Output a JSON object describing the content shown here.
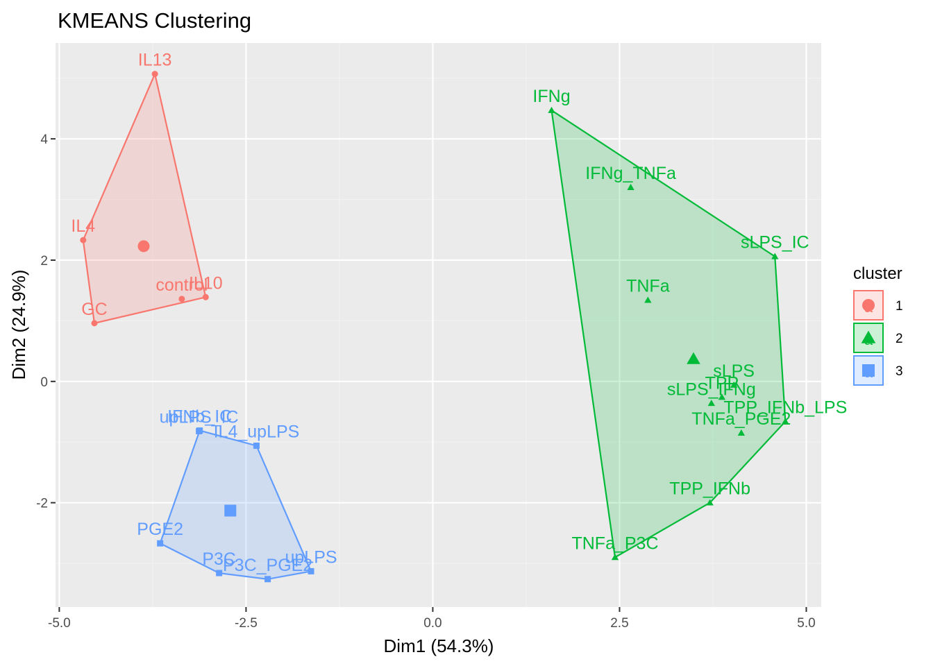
{
  "chart_data": {
    "type": "scatter",
    "title": "KMEANS Clustering",
    "xlabel": "Dim1 (54.3%)",
    "ylabel": "Dim2 (24.9%)",
    "xlim": [
      -5.05,
      5.2
    ],
    "ylim": [
      -3.72,
      5.58
    ],
    "x_ticks": [
      -5.0,
      -2.5,
      0.0,
      2.5,
      5.0
    ],
    "x_tick_labels": [
      "-5.0",
      "-2.5",
      "0.0",
      "2.5",
      "5.0"
    ],
    "y_ticks": [
      -2,
      0,
      2,
      4
    ],
    "y_tick_labels": [
      "-2",
      "0",
      "2",
      "4"
    ],
    "grid": true,
    "legend": {
      "title": "cluster",
      "position": "right",
      "entries": [
        {
          "label": "1",
          "glyph": "a"
        },
        {
          "label": "2",
          "glyph": "a"
        },
        {
          "label": "3",
          "glyph": "a"
        }
      ]
    },
    "series": [
      {
        "name": "1",
        "shape": "circle",
        "color": "#F8766D",
        "hull": [
          "IL13",
          "IL4",
          "GC",
          "IL10"
        ],
        "center": {
          "x": -3.87,
          "y": 2.23
        },
        "points": [
          {
            "label": "IL13",
            "x": -3.72,
            "y": 5.07
          },
          {
            "label": "IL4",
            "x": -4.68,
            "y": 2.33
          },
          {
            "label": "control",
            "x": -3.36,
            "y": 1.36
          },
          {
            "label": "IL10",
            "x": -3.04,
            "y": 1.39
          },
          {
            "label": "GC",
            "x": -4.53,
            "y": 0.96
          }
        ]
      },
      {
        "name": "2",
        "shape": "triangle",
        "color": "#00BA38",
        "hull": [
          "IFNg",
          "sLPS_IC",
          "TPP_IFNb_LPS",
          "TPP_IFNb",
          "TNFa_P3C"
        ],
        "center": {
          "x": 3.49,
          "y": 0.37
        },
        "points": [
          {
            "label": "IFNg",
            "x": 1.59,
            "y": 4.47
          },
          {
            "label": "IFNg_TNFa",
            "x": 2.65,
            "y": 3.2
          },
          {
            "label": "sLPS_IC",
            "x": 4.58,
            "y": 2.06
          },
          {
            "label": "TNFa",
            "x": 2.88,
            "y": 1.34
          },
          {
            "label": "sLPS_IFNg",
            "x": 3.73,
            "y": -0.36
          },
          {
            "label": "sLPS",
            "x": 4.03,
            "y": -0.06
          },
          {
            "label": "TPP",
            "x": 3.87,
            "y": -0.26
          },
          {
            "label": "TPP_IFNb_LPS",
            "x": 4.72,
            "y": -0.66
          },
          {
            "label": "TNFa_PGE2",
            "x": 4.13,
            "y": -0.85
          },
          {
            "label": "TPP_IFNb",
            "x": 3.71,
            "y": -2.0
          },
          {
            "label": "TNFa_P3C",
            "x": 2.44,
            "y": -2.9
          }
        ]
      },
      {
        "name": "3",
        "shape": "square",
        "color": "#619CFF",
        "hull": [
          "IFNb_IC",
          "IL4_upLPS",
          "upLPS",
          "P3C_PGE2",
          "P3C",
          "PGE2"
        ],
        "center": {
          "x": -2.71,
          "y": -2.13
        },
        "points": [
          {
            "label": "upLPS_IC",
            "x": -3.13,
            "y": -0.82
          },
          {
            "label": "IFNb_IC",
            "x": -3.12,
            "y": -0.81
          },
          {
            "label": "IL4_upLPS",
            "x": -2.36,
            "y": -1.06
          },
          {
            "label": "PGE2",
            "x": -3.65,
            "y": -2.67
          },
          {
            "label": "P3C",
            "x": -2.86,
            "y": -3.16
          },
          {
            "label": "P3C_PGE2",
            "x": -2.21,
            "y": -3.26
          },
          {
            "label": "upLPS",
            "x": -1.63,
            "y": -3.13
          }
        ]
      }
    ]
  }
}
